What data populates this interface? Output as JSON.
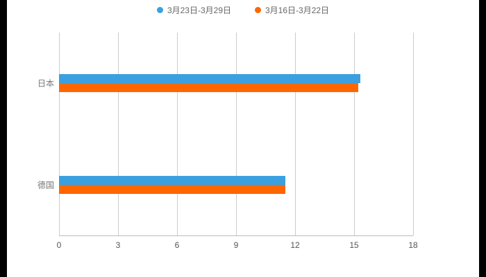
{
  "page": {
    "background": "#000000",
    "canvas_background": "#ffffff"
  },
  "legend": [
    {
      "label": "3月23日-3月29日",
      "color": "#3BA0E0"
    },
    {
      "label": "3月16日-3月22日",
      "color": "#FF6600"
    }
  ],
  "chart_data": {
    "type": "bar",
    "orientation": "horizontal",
    "title": "",
    "xlabel": "",
    "ylabel": "",
    "categories": [
      "日本",
      "德国"
    ],
    "series": [
      {
        "name": "3月23日-3月29日",
        "color": "#3BA0E0",
        "values": [
          15.3,
          11.5
        ]
      },
      {
        "name": "3月16日-3月22日",
        "color": "#FF6600",
        "values": [
          15.2,
          11.5
        ]
      }
    ],
    "xlim": [
      0,
      18
    ],
    "xticks": [
      0,
      3,
      6,
      9,
      12,
      15,
      18
    ],
    "grid": true,
    "legend_position": "top"
  }
}
